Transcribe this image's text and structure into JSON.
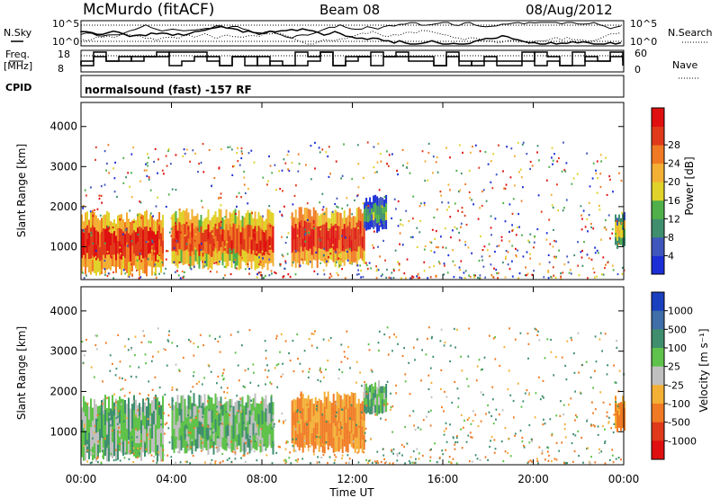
{
  "header": {
    "station": "McMurdo (fitACF)",
    "beam": "Beam 08",
    "date": "08/Aug/2012"
  },
  "top_panels": {
    "nsky_label": "N.Sky",
    "nsearch_label": "N.Search",
    "freq_label_1": "Freq.",
    "freq_label_2": "[MHz]",
    "nave_label": "Nave",
    "cpid_label": "CPID",
    "cpid_value": "normalsound (fast) -157 RF",
    "noise_ticks": [
      "10^5",
      "10^0"
    ],
    "freq_ticks": [
      "18",
      "8"
    ],
    "nave_ticks": [
      "60",
      "0"
    ]
  },
  "chart_data": [
    {
      "type": "heatmap",
      "title": "",
      "xlabel": "Time UT",
      "ylabel": "Slant Range [km]",
      "xticks": [
        "00:00",
        "04:00",
        "08:00",
        "12:00",
        "16:00",
        "20:00",
        "00:00"
      ],
      "xlim_hours": [
        0,
        24
      ],
      "yticks": [
        "1000",
        "2000",
        "3000",
        "4000"
      ],
      "ylim_km": [
        180,
        4600
      ],
      "colorbar": {
        "label": "Power [dB]",
        "ticks": [
          "4",
          "8",
          "12",
          "16",
          "20",
          "24",
          "28"
        ],
        "range": [
          0,
          30
        ],
        "colors": [
          "#1c2fd6",
          "#3f57bd",
          "#3f8f6e",
          "#4fb04a",
          "#e0d22a",
          "#f3b035",
          "#f07a23",
          "#e03a1a",
          "#e01010"
        ]
      },
      "series": [
        {
          "x_hours": [
            0.0,
            3.6
          ],
          "range_km": [
            350,
            1750
          ],
          "value": 26
        },
        {
          "x_hours": [
            4.0,
            8.5
          ],
          "range_km": [
            500,
            1800
          ],
          "value": 24
        },
        {
          "x_hours": [
            9.3,
            12.5
          ],
          "range_km": [
            550,
            1850
          ],
          "value": 27
        },
        {
          "x_hours": [
            12.5,
            13.5
          ],
          "range_km": [
            1400,
            2200
          ],
          "value": 10
        },
        {
          "x_hours": [
            23.6,
            24.0
          ],
          "range_km": [
            1000,
            1800
          ],
          "value": 16
        }
      ]
    },
    {
      "type": "heatmap",
      "title": "",
      "xlabel": "Time UT",
      "ylabel": "Slant Range [km]",
      "xticks": [
        "00:00",
        "04:00",
        "08:00",
        "12:00",
        "16:00",
        "20:00",
        "00:00"
      ],
      "xlim_hours": [
        0,
        24
      ],
      "yticks": [
        "1000",
        "2000",
        "3000",
        "4000"
      ],
      "ylim_km": [
        180,
        4600
      ],
      "colorbar": {
        "label": "Velocity [m s⁻¹]",
        "ticks": [
          "1000",
          "500",
          "100",
          "25",
          "-25",
          "-100",
          "-500",
          "-1000"
        ],
        "colors": [
          "#1a3fbf",
          "#3f6ea8",
          "#3f8f6e",
          "#5fc24a",
          "#c0c0c0",
          "#f3b035",
          "#f07a23",
          "#e03a1a",
          "#e01010"
        ]
      },
      "series": [
        {
          "x_hours": [
            0.0,
            3.6
          ],
          "range_km": [
            350,
            1750
          ],
          "value": 60
        },
        {
          "x_hours": [
            4.0,
            8.5
          ],
          "range_km": [
            500,
            1800
          ],
          "value": 60
        },
        {
          "x_hours": [
            9.3,
            12.5
          ],
          "range_km": [
            550,
            1850
          ],
          "value": -120
        },
        {
          "x_hours": [
            12.5,
            13.5
          ],
          "range_km": [
            1400,
            2200
          ],
          "value": 80
        },
        {
          "x_hours": [
            23.6,
            24.0
          ],
          "range_km": [
            1000,
            1800
          ],
          "value": -120
        }
      ]
    }
  ]
}
